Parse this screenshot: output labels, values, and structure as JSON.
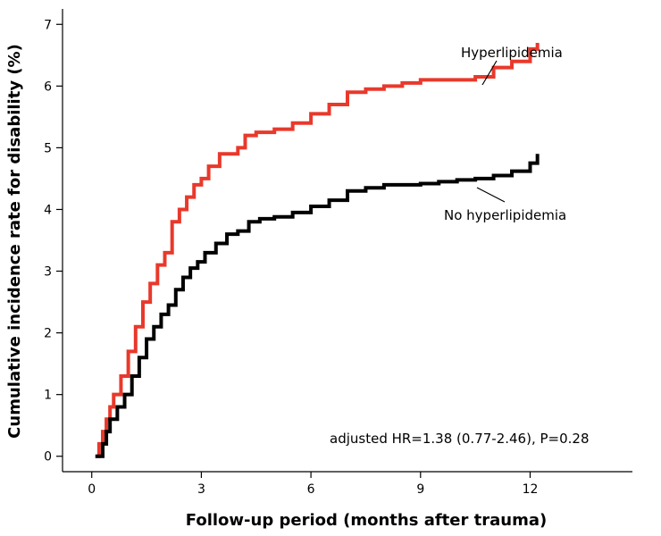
{
  "chart_data": {
    "type": "line",
    "xlabel": "Follow-up period (months after trauma)",
    "ylabel": "Cumulative incidence rate for disability (%)",
    "xlim": [
      -0.8,
      14.8
    ],
    "ylim": [
      -0.25,
      7.25
    ],
    "xticks": [
      0,
      3,
      6,
      9,
      12
    ],
    "yticks": [
      0,
      1,
      2,
      3,
      4,
      5,
      6,
      7
    ],
    "annotation": "adjusted HR=1.38 (0.77-2.46), P=0.28",
    "series": [
      {
        "name": "Hyperlipidemia",
        "color": "#e8392b",
        "style": "step",
        "x": [
          0.1,
          0.2,
          0.3,
          0.4,
          0.5,
          0.6,
          0.8,
          1.0,
          1.2,
          1.4,
          1.6,
          1.8,
          2.0,
          2.2,
          2.4,
          2.6,
          2.8,
          3.0,
          3.2,
          3.5,
          3.8,
          4.0,
          4.2,
          4.5,
          5.0,
          5.5,
          6.0,
          6.5,
          7.0,
          7.5,
          8.0,
          8.5,
          9.0,
          9.5,
          10.0,
          10.5,
          11.0,
          11.5,
          12.0,
          12.2
        ],
        "y": [
          0.0,
          0.2,
          0.4,
          0.6,
          0.8,
          1.0,
          1.3,
          1.7,
          2.1,
          2.5,
          2.8,
          3.1,
          3.3,
          3.8,
          4.0,
          4.2,
          4.4,
          4.5,
          4.7,
          4.9,
          4.9,
          5.0,
          5.2,
          5.25,
          5.3,
          5.4,
          5.55,
          5.7,
          5.9,
          5.95,
          6.0,
          6.05,
          6.1,
          6.1,
          6.1,
          6.15,
          6.3,
          6.4,
          6.6,
          6.7
        ]
      },
      {
        "name": "No hyperlipidemia",
        "color": "#000000",
        "style": "step",
        "x": [
          0.1,
          0.3,
          0.4,
          0.5,
          0.7,
          0.9,
          1.1,
          1.3,
          1.5,
          1.7,
          1.9,
          2.1,
          2.3,
          2.5,
          2.7,
          2.9,
          3.1,
          3.4,
          3.7,
          4.0,
          4.3,
          4.6,
          5.0,
          5.5,
          6.0,
          6.5,
          7.0,
          7.5,
          8.0,
          8.5,
          9.0,
          9.5,
          10.0,
          10.5,
          11.0,
          11.5,
          12.0,
          12.2
        ],
        "y": [
          0.0,
          0.2,
          0.4,
          0.6,
          0.8,
          1.0,
          1.3,
          1.6,
          1.9,
          2.1,
          2.3,
          2.45,
          2.7,
          2.9,
          3.05,
          3.15,
          3.3,
          3.45,
          3.6,
          3.65,
          3.8,
          3.85,
          3.88,
          3.95,
          4.05,
          4.15,
          4.3,
          4.35,
          4.4,
          4.4,
          4.42,
          4.45,
          4.48,
          4.5,
          4.55,
          4.62,
          4.75,
          4.9
        ]
      }
    ],
    "series_labels": [
      {
        "text": "Hyperlipidemia",
        "series": 0
      },
      {
        "text": "No hyperlipidemia",
        "series": 1
      }
    ]
  }
}
